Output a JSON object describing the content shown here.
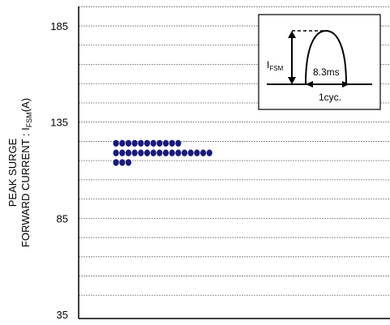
{
  "chart_data": {
    "type": "scatter",
    "title": "",
    "xlabel": "",
    "ylabel_line1": "PEAK SURGE",
    "ylabel_line2_main": "FORWARD CURRENT : I",
    "ylabel_line2_sub": "FSM",
    "ylabel_line2_unit": "(A)",
    "ylim": [
      35,
      195
    ],
    "yticks": [
      35,
      85,
      135,
      185
    ],
    "grid": "horizontal dashed every 10",
    "marker_color": "#1a1a7a",
    "x": [
      1,
      2,
      3,
      4,
      5,
      6,
      7,
      8,
      9,
      10,
      11,
      1,
      2,
      3,
      4,
      5,
      6,
      7,
      8,
      9,
      10,
      11,
      12,
      13,
      14,
      15,
      16,
      1,
      2,
      3
    ],
    "y": [
      124,
      124,
      124,
      124,
      124,
      124,
      124,
      124,
      124,
      124,
      124,
      119,
      119,
      119,
      119,
      119,
      119,
      119,
      119,
      119,
      119,
      119,
      119,
      119,
      119,
      119,
      119,
      114,
      114,
      114
    ],
    "xlim": [
      -5,
      45
    ]
  },
  "inset": {
    "ifsm_main": "I",
    "ifsm_sub": "FSM",
    "duration_label": "8.3ms",
    "cycle_label": "1cyc."
  }
}
